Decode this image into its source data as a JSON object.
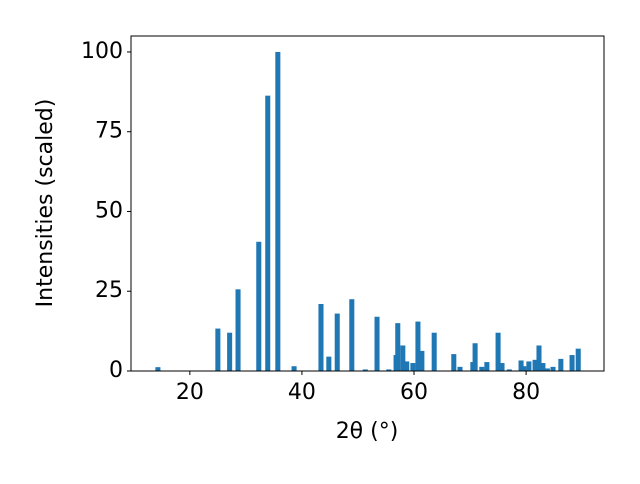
{
  "chart_data": {
    "type": "bar",
    "xlabel": "2θ (°)",
    "ylabel": "Intensities (scaled)",
    "color": "#1f77b4",
    "x": [
      14.3,
      25.0,
      27.1,
      28.6,
      32.3,
      33.9,
      35.7,
      38.6,
      43.4,
      44.8,
      46.3,
      48.9,
      51.3,
      53.4,
      55.5,
      56.8,
      57.1,
      58.0,
      58.7,
      59.8,
      60.7,
      61.4,
      63.6,
      67.1,
      68.2,
      70.5,
      70.9,
      72.1,
      73.0,
      75.0,
      75.7,
      77.0,
      79.1,
      79.6,
      80.5,
      81.6,
      82.3,
      83.0,
      83.8,
      84.8,
      86.2,
      88.2,
      89.3
    ],
    "values": [
      1.2,
      13.3,
      12,
      25.6,
      40.5,
      86.3,
      100,
      1.5,
      21,
      4.5,
      18,
      22.5,
      0.5,
      17,
      0.5,
      5,
      15,
      8,
      3,
      2.5,
      15.5,
      6.3,
      12,
      5.3,
      1.3,
      2.8,
      8.7,
      1.3,
      2.8,
      12,
      2.5,
      0.5,
      3.3,
      1.5,
      3,
      3.5,
      8,
      2.5,
      0.8,
      1.3,
      3.8,
      5,
      7
    ],
    "xlim": [
      9.5,
      93.9
    ],
    "ylim": [
      0,
      105
    ],
    "xticks": [
      20,
      40,
      60,
      80
    ],
    "yticks": [
      0,
      25,
      50,
      75,
      100
    ]
  }
}
